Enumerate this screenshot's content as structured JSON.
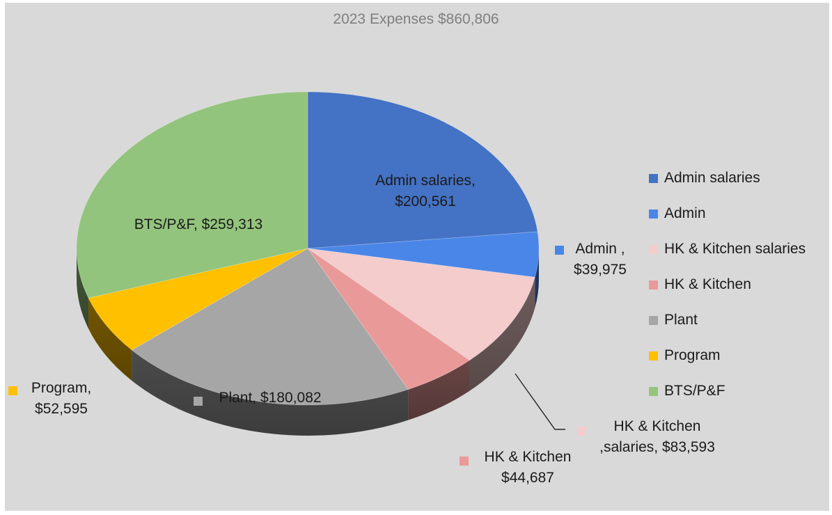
{
  "chart_data": {
    "type": "pie",
    "title": "2023 Expenses $860,806",
    "three_d": true,
    "legend_position": "right",
    "slices": [
      {
        "name": "Admin salaries",
        "value": 200561,
        "color": "#4472c4",
        "label_lines": [
          "Admin salaries,",
          "$200,561"
        ]
      },
      {
        "name": "Admin",
        "value": 39975,
        "color": "#4a86e8",
        "label_lines": [
          "Admin ,",
          "$39,975"
        ]
      },
      {
        "name": "HK & Kitchen salaries",
        "value": 83593,
        "color": "#f4cccc",
        "label_lines": [
          "HK & Kitchen",
          ",salaries, $83,593"
        ]
      },
      {
        "name": "HK & Kitchen",
        "value": 44687,
        "color": "#ea9999",
        "label_lines": [
          "HK & Kitchen",
          "$44,687"
        ]
      },
      {
        "name": "Plant",
        "value": 180082,
        "color": "#a6a6a6",
        "label_lines": [
          "Plant, $180,082"
        ]
      },
      {
        "name": "Program",
        "value": 52595,
        "color": "#ffc000",
        "label_lines": [
          "Program,",
          "$52,595"
        ]
      },
      {
        "name": "BTS/P&F",
        "value": 259313,
        "color": "#93c47d",
        "label_lines": [
          "BTS/P&F, $259,313"
        ]
      }
    ]
  }
}
